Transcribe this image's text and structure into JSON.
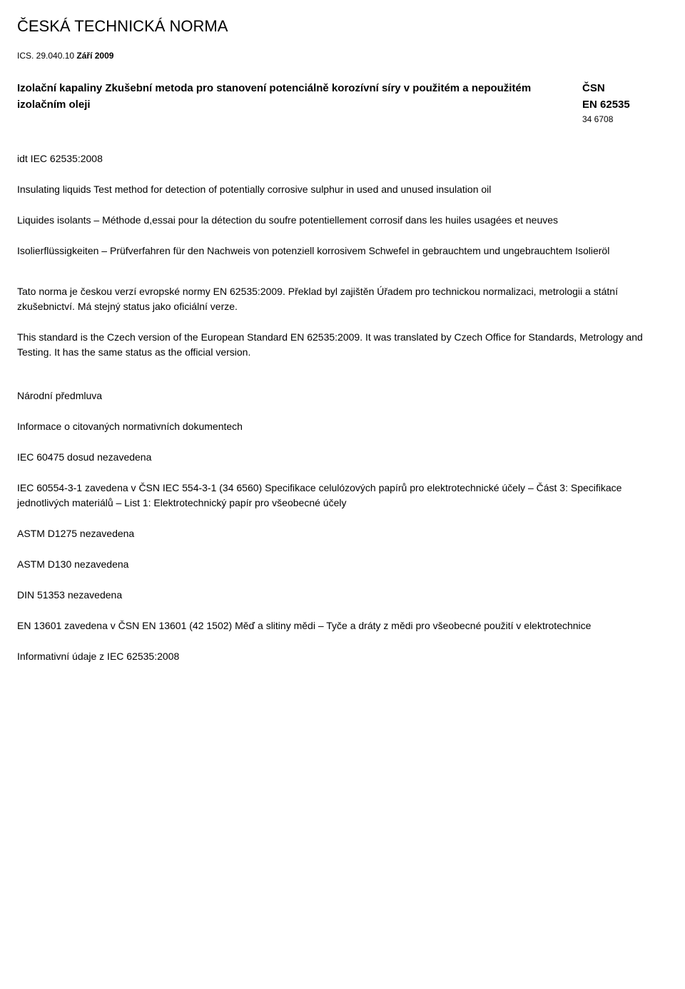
{
  "title": "ČESKÁ TECHNICKÁ NORMA",
  "ics_label": "ICS. 29.040.10",
  "ics_bold": "Září 2009",
  "header": {
    "left": "Izolační kapaliny Zkušební metoda pro stanovení potenciálně korozívní síry v použitém a nepoužitém izolačním oleji",
    "right_line1": "ČSN",
    "right_line2": "EN 62535",
    "right_sub": "34 6708"
  },
  "idt": "idt IEC 62535:2008",
  "lang_en": "Insulating liquids Test method for detection of potentially corrosive sulphur in used and unused insulation oil",
  "lang_fr": "Liquides isolants – Méthode d,essai pour la détection du soufre potentiellement corrosif dans les huiles usagées et neuves",
  "lang_de": "Isolierflüssigkeiten – Prüfverfahren für den Nachweis von potenziell korrosivem Schwefel in gebrauchtem und ungebrauchtem Isolieröl",
  "cz_note": "Tato norma je českou verzí evropské normy EN 62535:2009. Překlad byl zajištěn Úřadem pro technickou normalizaci, metrologii a státní zkušebnictví. Má stejný status jako oficiální verze.",
  "en_note": "This standard is the Czech version of the European Standard EN 62535:2009. It was translated by Czech Office for Standards, Metrology and Testing. It has the same status as the official version.",
  "preface_head": "Národní předmluva",
  "info_head": "Informace o citovaných normativních dokumentech",
  "refs": {
    "r1": "IEC 60475 dosud nezavedena",
    "r2": "IEC 60554-3-1 zavedena v ČSN IEC 554-3-1 (34 6560) Specifikace celulózových papírů pro elektrotechnické účely – Část 3: Specifikace jednotlivých materiálů – List 1: Elektrotechnický papír pro všeobecné účely",
    "r3": "ASTM D1275 nezavedena",
    "r4": "ASTM D130 nezavedena",
    "r5": "DIN 51353 nezavedena",
    "r6": "EN 13601 zavedena v ČSN EN 13601 (42 1502) Měď a slitiny mědi – Tyče a dráty z mědi pro všeobecné použití v elektrotechnice"
  },
  "footer": "Informativní údaje z IEC 62535:2008"
}
